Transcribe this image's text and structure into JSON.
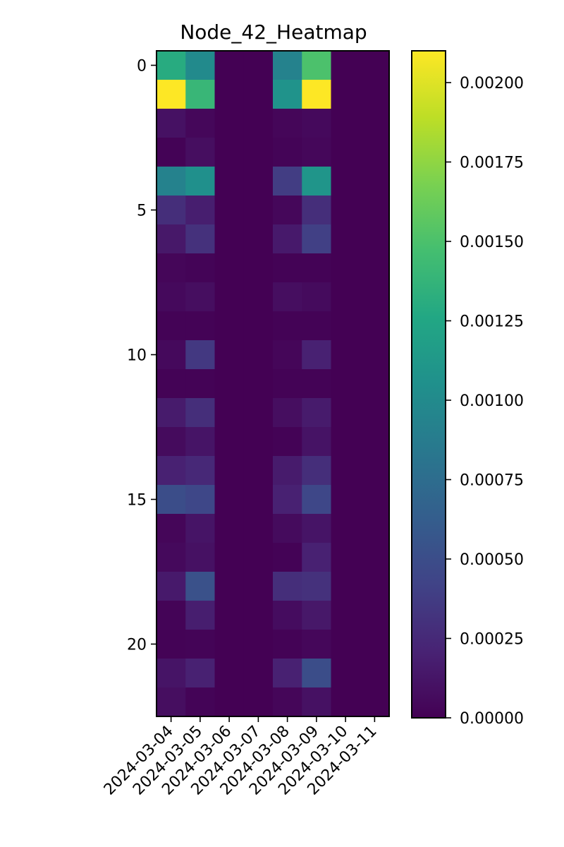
{
  "chart_data": {
    "type": "heatmap",
    "title": "Node_42_Heatmap",
    "xlabel": "",
    "ylabel": "",
    "x_categories": [
      "2024-03-04",
      "2024-03-05",
      "2024-03-06",
      "2024-03-07",
      "2024-03-08",
      "2024-03-09",
      "2024-03-10",
      "2024-03-11"
    ],
    "y_index": [
      0,
      1,
      2,
      3,
      4,
      5,
      6,
      7,
      8,
      9,
      10,
      11,
      12,
      13,
      14,
      15,
      16,
      17,
      18,
      19,
      20,
      21,
      22
    ],
    "y_ticks": [
      0,
      5,
      10,
      15,
      20
    ],
    "values": [
      [
        0.0013,
        0.001,
        0,
        0,
        0.00093,
        0.0015,
        0,
        0
      ],
      [
        0.0021,
        0.0014,
        0,
        0,
        0.00108,
        0.0021,
        0,
        0
      ],
      [
        0.0001,
        4e-05,
        0,
        0,
        3e-05,
        5e-05,
        0,
        0
      ],
      [
        1e-05,
        8e-05,
        0,
        0,
        2e-05,
        4e-05,
        0,
        0
      ],
      [
        0.00093,
        0.00105,
        0,
        0,
        0.00038,
        0.0011,
        0,
        0
      ],
      [
        0.00028,
        0.00018,
        0,
        0,
        4e-05,
        0.00028,
        0,
        0
      ],
      [
        0.00014,
        0.0003,
        0,
        0,
        0.00015,
        0.0004,
        0,
        0
      ],
      [
        3e-05,
        2e-05,
        0,
        0,
        1e-05,
        1e-05,
        0,
        0
      ],
      [
        5e-05,
        8e-05,
        0,
        0,
        8e-05,
        6e-05,
        0,
        0
      ],
      [
        1e-05,
        1e-05,
        0,
        0,
        1e-05,
        1e-05,
        0,
        0
      ],
      [
        5e-05,
        0.00035,
        0,
        0,
        3e-05,
        0.0002,
        0,
        0
      ],
      [
        1e-05,
        1e-05,
        0,
        0,
        1e-05,
        1e-05,
        0,
        0
      ],
      [
        0.00016,
        0.00028,
        0,
        0,
        8e-05,
        0.00016,
        0,
        0
      ],
      [
        6e-05,
        0.00012,
        0,
        0,
        1e-05,
        0.00011,
        0,
        0
      ],
      [
        0.0002,
        0.00024,
        0,
        0,
        0.00016,
        0.00028,
        0,
        0
      ],
      [
        0.0005,
        0.00045,
        0,
        0,
        0.0002,
        0.00045,
        0,
        0
      ],
      [
        3e-05,
        0.00012,
        0,
        0,
        6e-05,
        0.00012,
        0,
        0
      ],
      [
        5e-05,
        0.0001,
        0,
        0,
        1e-05,
        0.0002,
        0,
        0
      ],
      [
        0.00015,
        0.00053,
        0,
        0,
        0.00028,
        0.0003,
        0,
        0
      ],
      [
        2e-05,
        0.00018,
        0,
        0,
        7e-05,
        0.00014,
        0,
        0
      ],
      [
        1e-05,
        2e-05,
        0,
        0,
        1e-05,
        4e-05,
        0,
        0
      ],
      [
        0.00012,
        0.0002,
        0,
        0,
        0.0002,
        0.0005,
        0,
        0
      ],
      [
        8e-05,
        2e-05,
        0,
        0,
        3e-05,
        0.0001,
        0,
        0
      ]
    ],
    "colorbar": {
      "colormap": "viridis",
      "min": 0,
      "max": 0.0021,
      "ticks": [
        0.0,
        0.00025,
        0.0005,
        0.00075,
        0.001,
        0.00125,
        0.0015,
        0.00175,
        0.002
      ],
      "tick_labels": [
        "0.00000",
        "0.00025",
        "0.00050",
        "0.00075",
        "0.00100",
        "0.00125",
        "0.00150",
        "0.00175",
        "0.00200"
      ]
    },
    "grid": false,
    "legend": "none"
  }
}
